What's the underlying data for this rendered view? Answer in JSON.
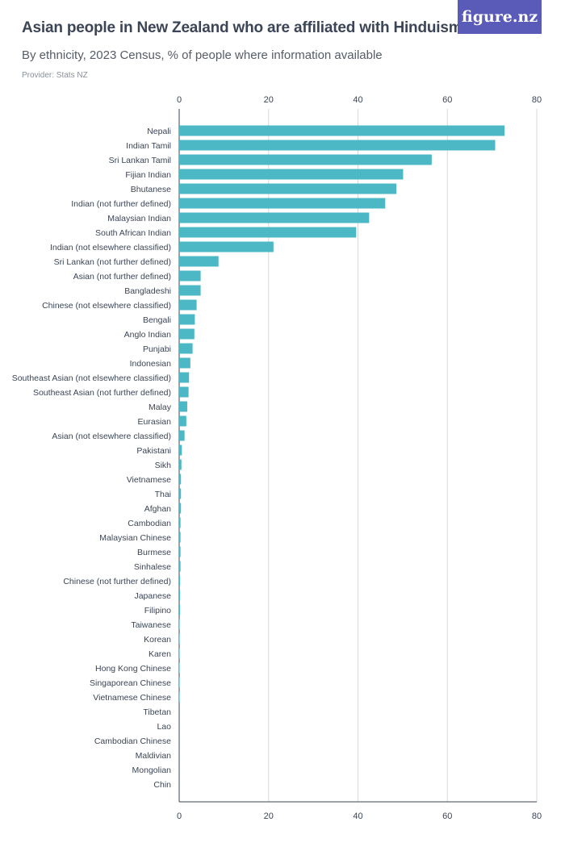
{
  "header": {
    "title": "Asian people in New Zealand who are affiliated with Hinduism",
    "subtitle": "By ethnicity, 2023 Census, % of people where information available",
    "provider": "Provider: Stats NZ",
    "logo": "figure.nz"
  },
  "colors": {
    "bar": "#4db8c5",
    "grid": "#d6d9de",
    "axis": "#3b4555"
  },
  "chart_data": {
    "type": "bar",
    "orientation": "horizontal",
    "title": "Asian people in New Zealand who are affiliated with Hinduism",
    "subtitle": "By ethnicity, 2023 Census, % of people where information available",
    "xlim": [
      0,
      80
    ],
    "ticks": [
      0,
      20,
      40,
      60,
      80
    ],
    "grid": true,
    "categories": [
      "Nepali",
      "Indian Tamil",
      "Sri Lankan Tamil",
      "Fijian Indian",
      "Bhutanese",
      "Indian (not further defined)",
      "Malaysian Indian",
      "South African Indian",
      "Indian (not elsewhere classified)",
      "Sri Lankan (not further defined)",
      "Asian (not further defined)",
      "Bangladeshi",
      "Chinese (not elsewhere classified)",
      "Bengali",
      "Anglo Indian",
      "Punjabi",
      "Indonesian",
      "Southeast Asian (not elsewhere classified)",
      "Southeast Asian (not further defined)",
      "Malay",
      "Eurasian",
      "Asian (not elsewhere classified)",
      "Pakistani",
      "Sikh",
      "Vietnamese",
      "Thai",
      "Afghan",
      "Cambodian",
      "Malaysian Chinese",
      "Burmese",
      "Sinhalese",
      "Chinese (not further defined)",
      "Japanese",
      "Filipino",
      "Taiwanese",
      "Korean",
      "Karen",
      "Hong Kong Chinese",
      "Singaporean Chinese",
      "Vietnamese Chinese",
      "Tibetan",
      "Lao",
      "Cambodian Chinese",
      "Maldivian",
      "Mongolian",
      "Chin"
    ],
    "values": [
      72.8,
      70.7,
      56.5,
      50.1,
      48.6,
      46.1,
      42.5,
      39.6,
      21.1,
      8.8,
      4.8,
      4.8,
      3.9,
      3.5,
      3.4,
      3.0,
      2.5,
      2.2,
      2.1,
      1.8,
      1.6,
      1.2,
      0.6,
      0.5,
      0.4,
      0.4,
      0.4,
      0.3,
      0.3,
      0.3,
      0.3,
      0.2,
      0.2,
      0.2,
      0.1,
      0.1,
      0.1,
      0.1,
      0.1,
      0.1,
      0.0,
      0.0,
      0.0,
      0.0,
      0.0,
      0.0
    ]
  }
}
